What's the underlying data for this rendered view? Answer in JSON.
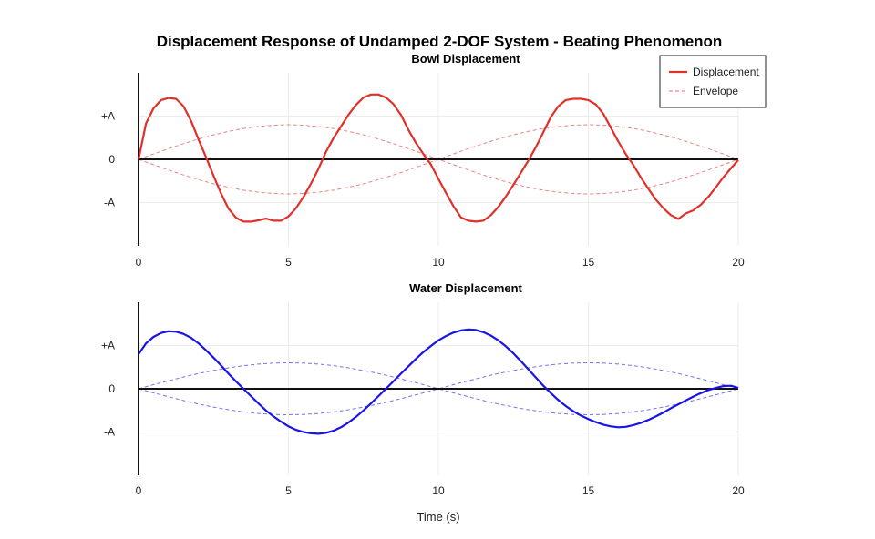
{
  "title": "Displacement Response of Undamped 2-DOF System - Beating Phenomenon",
  "colors": {
    "bowl": "#e0302a",
    "water": "#1a14e6",
    "axis": "#111111",
    "grid": "#ececec",
    "background": "#ffffff"
  },
  "chart_data": [
    {
      "type": "line",
      "title": "Bowl Displacement",
      "xlabel": "",
      "ylabel": "",
      "xlim": [
        0,
        20
      ],
      "ylim": [
        -2,
        2
      ],
      "x_ticks": [
        0,
        5,
        10,
        15,
        20
      ],
      "y_ticks": [
        {
          "value": 1,
          "label": "+A"
        },
        {
          "value": 0,
          "label": "0"
        },
        {
          "value": -1,
          "label": "-A"
        }
      ],
      "grid": true,
      "legend": {
        "placement": "top-right",
        "entries": [
          {
            "label": "Displacement",
            "style": "solid"
          },
          {
            "label": "Envelope",
            "style": "dashed"
          }
        ]
      },
      "series": [
        {
          "name": "Displacement",
          "style": "solid",
          "color": "#e0302a",
          "x": [
            0,
            0.25,
            0.5,
            0.75,
            1.0,
            1.25,
            1.5,
            1.75,
            2.0,
            2.25,
            2.5,
            2.75,
            3.0,
            3.25,
            3.5,
            3.75,
            4.0,
            4.25,
            4.5,
            4.75,
            5.0,
            5.25,
            5.5,
            5.75,
            6.0,
            6.25,
            6.5,
            6.75,
            7.0,
            7.25,
            7.5,
            7.75,
            8.0,
            8.25,
            8.5,
            8.75,
            9.0,
            9.25,
            9.5,
            9.75,
            10.0,
            10.25,
            10.5,
            10.75,
            11.0,
            11.25,
            11.5,
            11.75,
            12.0,
            12.25,
            12.5,
            12.75,
            13.0,
            13.25,
            13.5,
            13.75,
            14.0,
            14.25,
            14.5,
            14.75,
            15.0,
            15.25,
            15.5,
            15.75,
            16.0,
            16.25,
            16.5,
            16.75,
            17.0,
            17.25,
            17.5,
            17.75,
            18.0,
            18.25,
            18.5,
            18.75,
            19.0,
            19.25,
            19.5,
            19.75,
            20.0
          ],
          "y": [
            0,
            0.83,
            1.18,
            1.37,
            1.42,
            1.4,
            1.23,
            0.89,
            0.46,
            0.05,
            -0.38,
            -0.79,
            -1.14,
            -1.35,
            -1.44,
            -1.44,
            -1.41,
            -1.37,
            -1.42,
            -1.42,
            -1.32,
            -1.13,
            -0.87,
            -0.56,
            -0.22,
            0.17,
            0.49,
            0.76,
            1.03,
            1.26,
            1.43,
            1.5,
            1.5,
            1.43,
            1.28,
            1.03,
            0.68,
            0.38,
            0.12,
            -0.12,
            -0.45,
            -0.77,
            -1.08,
            -1.34,
            -1.42,
            -1.44,
            -1.42,
            -1.29,
            -1.1,
            -0.86,
            -0.59,
            -0.31,
            -0.03,
            0.28,
            0.63,
            0.98,
            1.23,
            1.37,
            1.4,
            1.4,
            1.37,
            1.27,
            1.05,
            0.73,
            0.41,
            0.12,
            -0.13,
            -0.42,
            -0.68,
            -0.93,
            -1.13,
            -1.29,
            -1.38,
            -1.25,
            -1.18,
            -1.05,
            -0.87,
            -0.65,
            -0.42,
            -0.21,
            -0.02
          ]
        },
        {
          "name": "Envelope",
          "style": "dashed",
          "color": "#e0302a",
          "x": [
            0,
            0.5,
            1.0,
            1.5,
            2.0,
            2.5,
            3.0,
            3.5,
            4.0,
            4.5,
            5.0,
            5.5,
            6.0,
            6.5,
            7.0,
            7.5,
            8.0,
            8.5,
            9.0,
            9.5,
            10.0,
            10.5,
            11.0,
            11.5,
            12.0,
            12.5,
            13.0,
            13.5,
            14.0,
            14.5,
            15.0,
            15.5,
            16.0,
            16.5,
            17.0,
            17.5,
            18.0,
            18.5,
            19.0,
            19.5,
            20.0
          ],
          "y": [
            0,
            0.125,
            0.247,
            0.363,
            0.47,
            0.566,
            0.647,
            0.713,
            0.761,
            0.79,
            0.8,
            0.79,
            0.761,
            0.713,
            0.647,
            0.566,
            0.47,
            0.363,
            0.247,
            0.125,
            0,
            0.125,
            0.247,
            0.363,
            0.47,
            0.566,
            0.647,
            0.713,
            0.761,
            0.79,
            0.8,
            0.79,
            0.761,
            0.713,
            0.647,
            0.566,
            0.47,
            0.363,
            0.247,
            0.125,
            0
          ],
          "mirror": true
        }
      ]
    },
    {
      "type": "line",
      "title": "Water Displacement",
      "xlabel": "Time (s)",
      "ylabel": "",
      "xlim": [
        0,
        20
      ],
      "ylim": [
        -2,
        2
      ],
      "x_ticks": [
        0,
        5,
        10,
        15,
        20
      ],
      "y_ticks": [
        {
          "value": 1,
          "label": "+A"
        },
        {
          "value": 0,
          "label": "0"
        },
        {
          "value": -1,
          "label": "-A"
        }
      ],
      "grid": true,
      "series": [
        {
          "name": "Displacement",
          "style": "solid",
          "color": "#1a14e6",
          "x": [
            0,
            0.25,
            0.5,
            0.75,
            1.0,
            1.25,
            1.5,
            1.75,
            2.0,
            2.25,
            2.5,
            2.75,
            3.0,
            3.25,
            3.5,
            3.75,
            4.0,
            4.25,
            4.5,
            4.75,
            5.0,
            5.25,
            5.5,
            5.75,
            6.0,
            6.25,
            6.5,
            6.75,
            7.0,
            7.25,
            7.5,
            7.75,
            8.0,
            8.25,
            8.5,
            8.75,
            9.0,
            9.25,
            9.5,
            9.75,
            10.0,
            10.25,
            10.5,
            10.75,
            11.0,
            11.25,
            11.5,
            11.75,
            12.0,
            12.25,
            12.5,
            12.75,
            13.0,
            13.25,
            13.5,
            13.75,
            14.0,
            14.25,
            14.5,
            14.75,
            15.0,
            15.25,
            15.5,
            15.75,
            16.0,
            16.25,
            16.5,
            16.75,
            17.0,
            17.25,
            17.5,
            17.75,
            18.0,
            18.25,
            18.5,
            18.75,
            19.0,
            19.25,
            19.5,
            19.75,
            20.0
          ],
          "y": [
            0.8,
            1.05,
            1.2,
            1.29,
            1.33,
            1.32,
            1.27,
            1.18,
            1.05,
            0.89,
            0.72,
            0.54,
            0.35,
            0.17,
            0.0,
            -0.17,
            -0.34,
            -0.5,
            -0.64,
            -0.76,
            -0.87,
            -0.95,
            -1.0,
            -1.03,
            -1.04,
            -1.02,
            -0.97,
            -0.89,
            -0.78,
            -0.65,
            -0.5,
            -0.34,
            -0.17,
            0.0,
            0.17,
            0.35,
            0.52,
            0.69,
            0.85,
            0.99,
            1.12,
            1.22,
            1.3,
            1.35,
            1.37,
            1.36,
            1.31,
            1.23,
            1.12,
            0.98,
            0.82,
            0.64,
            0.45,
            0.26,
            0.07,
            -0.1,
            -0.26,
            -0.4,
            -0.52,
            -0.62,
            -0.7,
            -0.77,
            -0.83,
            -0.87,
            -0.89,
            -0.88,
            -0.84,
            -0.79,
            -0.72,
            -0.64,
            -0.55,
            -0.45,
            -0.36,
            -0.27,
            -0.18,
            -0.1,
            -0.03,
            0.02,
            0.06,
            0.07,
            0.02
          ]
        },
        {
          "name": "Envelope",
          "style": "dashed",
          "color": "#1a14e6",
          "x": [
            0,
            0.5,
            1.0,
            1.5,
            2.0,
            2.5,
            3.0,
            3.5,
            4.0,
            4.5,
            5.0,
            5.5,
            6.0,
            6.5,
            7.0,
            7.5,
            8.0,
            8.5,
            9.0,
            9.5,
            10.0,
            10.5,
            11.0,
            11.5,
            12.0,
            12.5,
            13.0,
            13.5,
            14.0,
            14.5,
            15.0,
            15.5,
            16.0,
            16.5,
            17.0,
            17.5,
            18.0,
            18.5,
            19.0,
            19.5,
            20.0
          ],
          "y": [
            0,
            0.094,
            0.185,
            0.272,
            0.353,
            0.424,
            0.485,
            0.535,
            0.571,
            0.593,
            0.6,
            0.593,
            0.571,
            0.535,
            0.485,
            0.424,
            0.353,
            0.272,
            0.185,
            0.094,
            0,
            0.094,
            0.185,
            0.272,
            0.353,
            0.424,
            0.485,
            0.535,
            0.571,
            0.593,
            0.6,
            0.593,
            0.571,
            0.535,
            0.485,
            0.424,
            0.353,
            0.272,
            0.185,
            0.094,
            0
          ],
          "mirror": true
        }
      ]
    }
  ]
}
